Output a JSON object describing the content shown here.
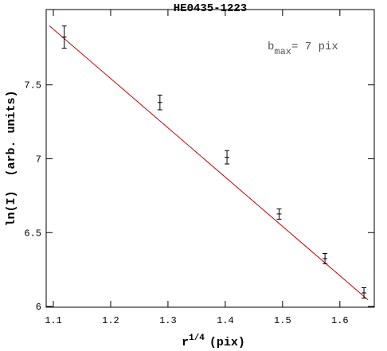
{
  "chart_data": {
    "type": "scatter",
    "title": "HE0435-1223",
    "x_label": {
      "base": "r",
      "sup": "1/4",
      "rest": "(pix)"
    },
    "y_label": "ln(I)  (arb. units)",
    "annotation": {
      "base": "b",
      "sub": "max",
      "rest": "= 7 pix"
    },
    "xlim": [
      1.0875,
      1.66
    ],
    "ylim": [
      5.995,
      8.01
    ],
    "xticks": [
      1.1,
      1.2,
      1.3,
      1.4,
      1.5,
      1.6
    ],
    "yticks": [
      6,
      6.5,
      7,
      7.5
    ],
    "points": {
      "color": "#000000",
      "x": [
        1.119,
        1.286,
        1.403,
        1.494,
        1.574,
        1.642
      ],
      "y": [
        7.824,
        7.381,
        7.01,
        6.626,
        6.324,
        6.092
      ],
      "yerr": [
        0.075,
        0.05,
        0.045,
        0.035,
        0.035,
        0.035
      ]
    },
    "fit": {
      "color": "#cc0000",
      "x": [
        1.093,
        1.649
      ],
      "y": [
        7.9,
        6.045
      ]
    }
  }
}
